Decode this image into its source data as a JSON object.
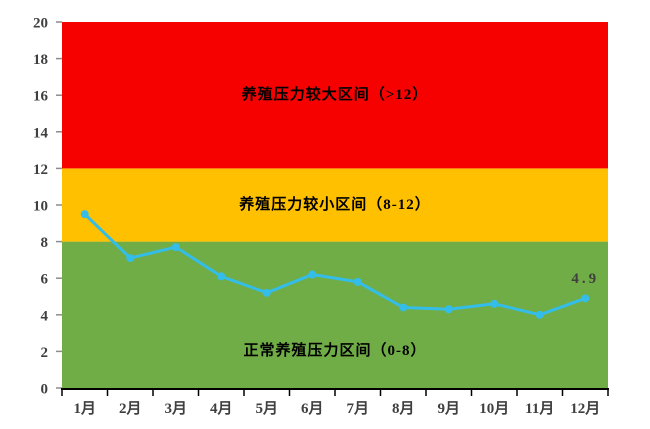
{
  "page": {
    "background_color": "#ffffff"
  },
  "chart_data": {
    "type": "line",
    "title": "",
    "categories": [
      "1月",
      "2月",
      "3月",
      "4月",
      "5月",
      "6月",
      "7月",
      "8月",
      "9月",
      "10月",
      "11月",
      "12月"
    ],
    "values": [
      9.5,
      7.1,
      7.7,
      6.1,
      5.2,
      6.2,
      5.8,
      4.4,
      4.3,
      4.6,
      4.0,
      4.9
    ],
    "ylim": [
      0,
      20
    ],
    "ytick_step": 2,
    "grid": false,
    "legend": "none",
    "line_color": "#33BDE8",
    "marker": "circle",
    "axis_color": "#000000",
    "ytick_color": "#8c8c8c",
    "tick_label_color": "#3f3f3f",
    "bands": [
      {
        "range": [
          0,
          8
        ],
        "color": "#70AD47",
        "label": "正常养殖压力区间（0-8）",
        "label_at": 2
      },
      {
        "range": [
          8,
          12
        ],
        "color": "#FFC000",
        "label": "养殖压力较小区间（8-12）",
        "label_at": 10
      },
      {
        "range": [
          12,
          20
        ],
        "color": "#F60000",
        "label": "养殖压力较大区间（>12）",
        "label_at": 16
      }
    ],
    "point_label": {
      "text": "4.9",
      "index": 11
    }
  }
}
